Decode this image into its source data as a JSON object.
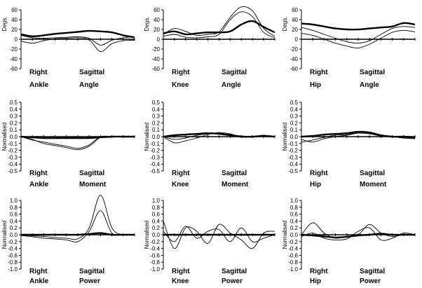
{
  "chart_data": [
    {
      "type": "line",
      "ylabel": "Degs.",
      "ylim": [
        -60,
        60
      ],
      "yticks": [
        60,
        40,
        20,
        0,
        -20,
        -40,
        -60
      ],
      "row": 0,
      "col": 0,
      "label_side": "Right",
      "label_joint": "Ankle",
      "label_plane": "Sagittal",
      "label_quantity": "Angle",
      "series": [
        {
          "style": "thick",
          "x": [
            0,
            10,
            20,
            30,
            40,
            50,
            60,
            70,
            80,
            90,
            100
          ],
          "y": [
            10,
            6,
            8,
            11,
            13,
            15,
            17,
            16,
            14,
            8,
            4
          ]
        },
        {
          "style": "thin",
          "x": [
            0,
            10,
            20,
            30,
            40,
            50,
            60,
            70,
            80,
            90,
            100
          ],
          "y": [
            8,
            3,
            2,
            3,
            4,
            5,
            2,
            -12,
            -2,
            3,
            5
          ]
        },
        {
          "style": "thin",
          "x": [
            0,
            10,
            20,
            30,
            40,
            50,
            60,
            70,
            80,
            90,
            100
          ],
          "y": [
            -4,
            -8,
            -3,
            1,
            2,
            3,
            -1,
            -25,
            -9,
            -3,
            -2
          ]
        }
      ]
    },
    {
      "type": "line",
      "ylabel": "Degs.",
      "ylim": [
        -60,
        60
      ],
      "yticks": [
        60,
        40,
        20,
        0,
        -20,
        -40,
        -60
      ],
      "row": 0,
      "col": 1,
      "label_side": "Right",
      "label_joint": "Knee",
      "label_plane": "Sagittal",
      "label_quantity": "Angle",
      "series": [
        {
          "style": "thick",
          "x": [
            0,
            10,
            20,
            30,
            40,
            50,
            60,
            70,
            80,
            90,
            100
          ],
          "y": [
            12,
            16,
            10,
            12,
            14,
            14,
            16,
            30,
            37,
            25,
            14
          ]
        },
        {
          "style": "thin",
          "x": [
            0,
            10,
            20,
            30,
            40,
            50,
            60,
            70,
            80,
            90,
            100
          ],
          "y": [
            10,
            22,
            16,
            8,
            10,
            15,
            45,
            66,
            58,
            22,
            6
          ]
        },
        {
          "style": "thin",
          "x": [
            0,
            10,
            20,
            30,
            40,
            50,
            60,
            70,
            80,
            90,
            100
          ],
          "y": [
            6,
            10,
            4,
            3,
            5,
            10,
            40,
            56,
            46,
            14,
            3
          ]
        }
      ]
    },
    {
      "type": "line",
      "ylabel": "Degs.",
      "ylim": [
        -60,
        60
      ],
      "yticks": [
        60,
        40,
        20,
        0,
        -20,
        -40,
        -60
      ],
      "row": 0,
      "col": 2,
      "label_side": "Right",
      "label_joint": "Hip",
      "label_plane": "Sagittal",
      "label_quantity": "Angle",
      "series": [
        {
          "style": "thick",
          "x": [
            0,
            10,
            20,
            30,
            40,
            50,
            60,
            70,
            80,
            90,
            100
          ],
          "y": [
            32,
            30,
            26,
            22,
            20,
            20,
            22,
            24,
            26,
            33,
            30
          ]
        },
        {
          "style": "thin",
          "x": [
            0,
            10,
            20,
            30,
            40,
            50,
            60,
            70,
            80,
            90,
            100
          ],
          "y": [
            24,
            18,
            10,
            2,
            -5,
            -8,
            -3,
            10,
            22,
            26,
            24
          ]
        },
        {
          "style": "thin",
          "x": [
            0,
            10,
            20,
            30,
            40,
            50,
            60,
            70,
            80,
            90,
            100
          ],
          "y": [
            12,
            8,
            0,
            -8,
            -14,
            -18,
            -10,
            2,
            14,
            18,
            15
          ]
        }
      ]
    },
    {
      "type": "line",
      "ylabel": "Normalised",
      "ylim": [
        -0.5,
        0.5
      ],
      "yticks": [
        0.5,
        0.4,
        0.3,
        0.2,
        0.1,
        0.0,
        -0.1,
        -0.2,
        -0.3,
        -0.4,
        -0.5
      ],
      "row": 1,
      "col": 0,
      "label_side": "Right",
      "label_joint": "Ankle",
      "label_plane": "Sagittal",
      "label_quantity": "Moment",
      "series": [
        {
          "style": "thick",
          "x": [
            0,
            10,
            20,
            30,
            40,
            50,
            60,
            70,
            80,
            90,
            100
          ],
          "y": [
            0.0,
            -0.01,
            -0.02,
            -0.02,
            -0.02,
            -0.02,
            -0.02,
            -0.01,
            0.0,
            0.0,
            0.0
          ]
        },
        {
          "style": "thin",
          "x": [
            0,
            10,
            20,
            30,
            40,
            50,
            60,
            70,
            80,
            90,
            100
          ],
          "y": [
            0.0,
            -0.05,
            -0.08,
            -0.11,
            -0.14,
            -0.17,
            -0.12,
            0.0,
            0.0,
            0.0,
            0.0
          ]
        },
        {
          "style": "thin",
          "x": [
            0,
            10,
            20,
            30,
            40,
            50,
            60,
            70,
            80,
            90,
            100
          ],
          "y": [
            0.0,
            -0.04,
            -0.1,
            -0.13,
            -0.16,
            -0.19,
            -0.14,
            -0.01,
            0.0,
            0.0,
            0.0
          ]
        }
      ]
    },
    {
      "type": "line",
      "ylabel": "Normalised",
      "ylim": [
        -0.5,
        0.5
      ],
      "yticks": [
        0.5,
        0.4,
        0.3,
        0.2,
        0.1,
        0.0,
        -0.1,
        -0.2,
        -0.3,
        -0.4,
        -0.5
      ],
      "row": 1,
      "col": 1,
      "label_side": "Right",
      "label_joint": "Knee",
      "label_plane": "Sagittal",
      "label_quantity": "Moment",
      "series": [
        {
          "style": "thick",
          "x": [
            0,
            10,
            20,
            30,
            40,
            50,
            60,
            70,
            80,
            90,
            100
          ],
          "y": [
            0.0,
            0.02,
            0.03,
            0.04,
            0.05,
            0.04,
            0.02,
            0.0,
            0.0,
            0.01,
            0.0
          ]
        },
        {
          "style": "thin",
          "x": [
            0,
            10,
            20,
            30,
            40,
            50,
            60,
            70,
            80,
            90,
            100
          ],
          "y": [
            0.0,
            -0.09,
            -0.06,
            -0.02,
            0.03,
            0.06,
            0.04,
            0.0,
            0.0,
            0.02,
            0.0
          ]
        },
        {
          "style": "thin",
          "x": [
            0,
            10,
            20,
            30,
            40,
            50,
            60,
            70,
            80,
            90,
            100
          ],
          "y": [
            0.0,
            -0.04,
            -0.02,
            0.02,
            0.04,
            0.05,
            0.03,
            0.01,
            0.0,
            0.0,
            0.0
          ]
        }
      ]
    },
    {
      "type": "line",
      "ylabel": "Normalised",
      "ylim": [
        -0.5,
        0.5
      ],
      "yticks": [
        0.5,
        0.4,
        0.3,
        0.2,
        0.1,
        0.0,
        -0.1,
        -0.2,
        -0.3,
        -0.4,
        -0.5
      ],
      "row": 1,
      "col": 2,
      "label_side": "Right",
      "label_joint": "Hip",
      "label_plane": "Sagittal",
      "label_quantity": "Moment",
      "series": [
        {
          "style": "thick",
          "x": [
            0,
            10,
            20,
            30,
            40,
            50,
            60,
            70,
            80,
            90,
            100
          ],
          "y": [
            0.0,
            0.01,
            0.03,
            0.04,
            0.05,
            0.07,
            0.06,
            0.02,
            0.0,
            0.0,
            -0.01
          ]
        },
        {
          "style": "thin",
          "x": [
            0,
            10,
            20,
            30,
            40,
            50,
            60,
            70,
            80,
            90,
            100
          ],
          "y": [
            -0.04,
            -0.08,
            -0.03,
            0.0,
            0.02,
            0.05,
            0.04,
            0.01,
            0.0,
            -0.01,
            -0.02
          ]
        },
        {
          "style": "thin",
          "x": [
            0,
            10,
            20,
            30,
            40,
            50,
            60,
            70,
            80,
            90,
            100
          ],
          "y": [
            -0.08,
            -0.05,
            -0.01,
            0.02,
            0.03,
            0.06,
            0.05,
            0.01,
            0.0,
            -0.02,
            -0.03
          ]
        }
      ]
    },
    {
      "type": "line",
      "ylabel": "Normalised",
      "ylim": [
        -1.0,
        1.0
      ],
      "yticks": [
        1.0,
        0.8,
        0.6,
        0.4,
        0.2,
        0.0,
        -0.2,
        -0.4,
        -0.6,
        -0.8,
        -1.0
      ],
      "row": 2,
      "col": 0,
      "label_side": "Right",
      "label_joint": "Ankle",
      "label_plane": "Sagittal",
      "label_quantity": "Power",
      "series": [
        {
          "style": "thick",
          "x": [
            0,
            10,
            20,
            30,
            40,
            50,
            60,
            70,
            80,
            90,
            100
          ],
          "y": [
            0.0,
            0.0,
            0.0,
            0.0,
            0.0,
            0.0,
            0.02,
            0.05,
            0.0,
            0.0,
            0.0
          ]
        },
        {
          "style": "thin",
          "x": [
            0,
            10,
            20,
            30,
            40,
            50,
            60,
            70,
            80,
            90,
            100
          ],
          "y": [
            0.0,
            -0.03,
            -0.05,
            -0.08,
            -0.1,
            -0.12,
            0.2,
            1.15,
            0.2,
            0.0,
            0.0
          ]
        },
        {
          "style": "thin",
          "x": [
            0,
            10,
            20,
            30,
            40,
            50,
            60,
            70,
            80,
            90,
            100
          ],
          "y": [
            -0.02,
            -0.06,
            -0.1,
            -0.12,
            -0.15,
            -0.2,
            0.1,
            0.7,
            0.05,
            0.0,
            0.0
          ]
        }
      ]
    },
    {
      "type": "line",
      "ylabel": "Normalised",
      "ylim": [
        -1.0,
        1.0
      ],
      "yticks": [
        1.0,
        0.8,
        0.6,
        0.4,
        0.2,
        0.0,
        -0.2,
        -0.4,
        -0.6,
        -0.8,
        -1.0
      ],
      "row": 2,
      "col": 1,
      "label_side": "Right",
      "label_joint": "Knee",
      "label_plane": "Sagittal",
      "label_quantity": "Power",
      "series": [
        {
          "style": "thick",
          "x": [
            0,
            10,
            20,
            30,
            40,
            50,
            60,
            70,
            80,
            90,
            100
          ],
          "y": [
            0.0,
            0.0,
            0.0,
            0.0,
            0.0,
            0.0,
            0.0,
            0.0,
            0.0,
            0.0,
            0.0
          ]
        },
        {
          "style": "thin",
          "x": [
            0,
            10,
            20,
            30,
            40,
            50,
            60,
            70,
            80,
            90,
            100
          ],
          "y": [
            0.4,
            -0.4,
            0.2,
            0.1,
            -0.25,
            0.3,
            0.05,
            -0.15,
            -0.4,
            0.05,
            0.1
          ]
        },
        {
          "style": "thin",
          "x": [
            0,
            10,
            20,
            30,
            40,
            50,
            60,
            70,
            80,
            90,
            100
          ],
          "y": [
            0.1,
            -0.2,
            0.25,
            -0.1,
            0.1,
            0.15,
            -0.2,
            0.2,
            -0.2,
            -0.1,
            0.0
          ]
        }
      ]
    },
    {
      "type": "line",
      "ylabel": "Normalised",
      "ylim": [
        -1.0,
        1.0
      ],
      "yticks": [
        1.0,
        0.8,
        0.6,
        0.4,
        0.2,
        0.0,
        -0.2,
        -0.4,
        -0.6,
        -0.8,
        -1.0
      ],
      "row": 2,
      "col": 2,
      "label_side": "Right",
      "label_joint": "Hip",
      "label_plane": "Sagittal",
      "label_quantity": "Power",
      "series": [
        {
          "style": "thick",
          "x": [
            0,
            10,
            20,
            30,
            40,
            50,
            60,
            70,
            80,
            90,
            100
          ],
          "y": [
            0.0,
            -0.02,
            -0.05,
            -0.08,
            -0.06,
            -0.02,
            0.0,
            0.03,
            0.0,
            0.0,
            0.0
          ]
        },
        {
          "style": "thin",
          "x": [
            0,
            10,
            20,
            30,
            40,
            50,
            60,
            70,
            80,
            90,
            100
          ],
          "y": [
            0.0,
            0.35,
            0.05,
            -0.1,
            -0.05,
            0.0,
            0.3,
            0.05,
            -0.05,
            0.0,
            0.0
          ]
        },
        {
          "style": "thin",
          "x": [
            0,
            10,
            20,
            30,
            40,
            50,
            60,
            70,
            80,
            90,
            100
          ],
          "y": [
            -0.05,
            0.05,
            -0.1,
            -0.15,
            -0.12,
            0.1,
            0.2,
            -0.15,
            -0.1,
            0.05,
            0.0
          ]
        }
      ]
    }
  ]
}
